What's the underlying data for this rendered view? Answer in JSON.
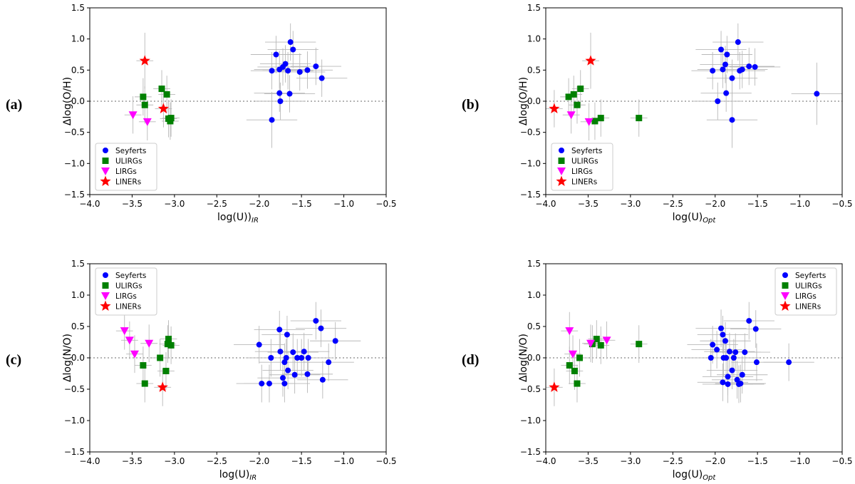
{
  "colors": {
    "seyferts": "#0000ff",
    "ulirgs": "#008000",
    "lirgs": "#ff00ff",
    "liners": "#ff0000",
    "errbar": "#b8b8b8",
    "zero": "#888888"
  },
  "legend_labels": [
    "Seyferts",
    "ULIRGs",
    "LIRGs",
    "LINERs"
  ],
  "chart_data": [
    {
      "type": "scatter",
      "panel_label": "(a)",
      "ylabel": "Δlog(O/H)",
      "xlabel": "log(U))",
      "xlabel_sub": "IR",
      "xlim": [
        -4.0,
        -0.5
      ],
      "ylim": [
        -1.5,
        1.5
      ],
      "xticks": [
        "−4.0",
        "−3.5",
        "−3.0",
        "−2.5",
        "−2.0",
        "−1.5",
        "−1.0",
        "−0.5"
      ],
      "yticks": [
        "1.5",
        "1.0",
        "0.5",
        "0.0",
        "−0.5",
        "−1.0",
        "−1.5"
      ],
      "legend_position": "lower-left",
      "series": [
        {
          "name": "Seyferts",
          "points": [
            [
              -1.85,
              0.49,
              0.25,
              0.3
            ],
            [
              -1.8,
              0.75,
              0.3,
              0.3
            ],
            [
              -1.76,
              0.51,
              0.3,
              0.3
            ],
            [
              -1.72,
              0.55,
              0.3,
              0.3
            ],
            [
              -1.69,
              0.6,
              0.3,
              0.3
            ],
            [
              -1.66,
              0.49,
              0.3,
              0.3
            ],
            [
              -1.63,
              0.95,
              0.3,
              0.3
            ],
            [
              -1.6,
              0.83,
              0.3,
              0.3
            ],
            [
              -1.52,
              0.47,
              0.3,
              0.3
            ],
            [
              -1.43,
              0.5,
              0.3,
              0.3
            ],
            [
              -1.33,
              0.56,
              0.3,
              0.3
            ],
            [
              -1.26,
              0.37,
              0.3,
              0.3
            ],
            [
              -1.76,
              0.13,
              0.3,
              0.3
            ],
            [
              -1.75,
              0.0,
              0.3,
              0.3
            ],
            [
              -1.64,
              0.12,
              0.3,
              0.3
            ],
            [
              -1.85,
              -0.3,
              0.3,
              0.45
            ]
          ]
        },
        {
          "name": "ULIRGs",
          "points": [
            [
              -3.37,
              0.07,
              0.1,
              0.3
            ],
            [
              -3.35,
              -0.06,
              0.1,
              0.3
            ],
            [
              -3.15,
              0.2,
              0.1,
              0.3
            ],
            [
              -3.09,
              0.11,
              0.1,
              0.3
            ],
            [
              -3.07,
              -0.28,
              0.1,
              0.3
            ],
            [
              -3.05,
              -0.32,
              0.1,
              0.3
            ],
            [
              -3.04,
              -0.27,
              0.1,
              0.3
            ]
          ]
        },
        {
          "name": "LIRGs",
          "points": [
            [
              -3.49,
              -0.22,
              0.1,
              0.3
            ],
            [
              -3.32,
              -0.33,
              0.1,
              0.3
            ]
          ]
        },
        {
          "name": "LINERs",
          "points": [
            [
              -3.35,
              0.65,
              0.1,
              0.45
            ],
            [
              -3.13,
              -0.12,
              0.1,
              0.3
            ]
          ]
        }
      ]
    },
    {
      "type": "scatter",
      "panel_label": "(b)",
      "ylabel": "Δlog(O/H)",
      "xlabel": "log(U)",
      "xlabel_sub": "Opt",
      "xlim": [
        -4.0,
        -0.5
      ],
      "ylim": [
        -1.5,
        1.5
      ],
      "xticks": [
        "−4.0",
        "−3.5",
        "−3.0",
        "−2.5",
        "−2.0",
        "−1.5",
        "−1.0",
        "−0.5"
      ],
      "yticks": [
        "1.5",
        "1.0",
        "0.5",
        "0.0",
        "−0.5",
        "−1.0",
        "−1.5"
      ],
      "legend_position": "lower-left",
      "series": [
        {
          "name": "Seyferts",
          "points": [
            [
              -2.03,
              0.49,
              0.25,
              0.3
            ],
            [
              -1.93,
              0.83,
              0.3,
              0.3
            ],
            [
              -1.91,
              0.51,
              0.3,
              0.3
            ],
            [
              -1.88,
              0.59,
              0.3,
              0.3
            ],
            [
              -1.86,
              0.75,
              0.3,
              0.3
            ],
            [
              -1.73,
              0.95,
              0.3,
              0.3
            ],
            [
              -1.71,
              0.49,
              0.3,
              0.3
            ],
            [
              -1.68,
              0.51,
              0.3,
              0.3
            ],
            [
              -1.6,
              0.56,
              0.3,
              0.3
            ],
            [
              -1.53,
              0.55,
              0.3,
              0.3
            ],
            [
              -1.8,
              0.37,
              0.3,
              0.3
            ],
            [
              -1.97,
              0.0,
              0.3,
              0.3
            ],
            [
              -1.87,
              0.13,
              0.3,
              0.3
            ],
            [
              -1.8,
              -0.3,
              0.3,
              0.45
            ],
            [
              -0.8,
              0.12,
              0.3,
              0.5
            ]
          ]
        },
        {
          "name": "ULIRGs",
          "points": [
            [
              -3.73,
              0.07,
              0.1,
              0.3
            ],
            [
              -3.67,
              0.11,
              0.1,
              0.3
            ],
            [
              -3.63,
              -0.06,
              0.1,
              0.3
            ],
            [
              -3.59,
              0.2,
              0.1,
              0.3
            ],
            [
              -3.42,
              -0.32,
              0.1,
              0.3
            ],
            [
              -3.35,
              -0.27,
              0.1,
              0.3
            ],
            [
              -2.9,
              -0.27,
              0.1,
              0.3
            ]
          ]
        },
        {
          "name": "LIRGs",
          "points": [
            [
              -3.7,
              -0.22,
              0.1,
              0.3
            ],
            [
              -3.49,
              -0.33,
              0.1,
              0.3
            ]
          ]
        },
        {
          "name": "LINERs",
          "points": [
            [
              -3.9,
              -0.12,
              0.1,
              0.3
            ],
            [
              -3.47,
              0.65,
              0.1,
              0.45
            ]
          ]
        }
      ]
    },
    {
      "type": "scatter",
      "panel_label": "(c)",
      "ylabel": "Δlog(N/O)",
      "xlabel": "log(U)",
      "xlabel_sub": "IR",
      "xlim": [
        -4.0,
        -0.5
      ],
      "ylim": [
        -1.5,
        1.5
      ],
      "xticks": [
        "−4.0",
        "−3.5",
        "−3.0",
        "−2.5",
        "−2.0",
        "−1.5",
        "−1.0",
        "−0.5"
      ],
      "yticks": [
        "1.5",
        "1.0",
        "0.5",
        "0.0",
        "−0.5",
        "−1.0",
        "−1.5"
      ],
      "legend_position": "upper-left",
      "series": [
        {
          "name": "Seyferts",
          "points": [
            [
              -2.0,
              0.21,
              0.3,
              0.3
            ],
            [
              -1.97,
              -0.41,
              0.3,
              0.3
            ],
            [
              -1.88,
              -0.41,
              0.3,
              0.3
            ],
            [
              -1.86,
              0.0,
              0.3,
              0.3
            ],
            [
              -1.76,
              0.45,
              0.3,
              0.3
            ],
            [
              -1.75,
              0.1,
              0.3,
              0.3
            ],
            [
              -1.7,
              -0.07,
              0.3,
              0.3
            ],
            [
              -1.68,
              0.0,
              0.3,
              0.3
            ],
            [
              -1.67,
              0.37,
              0.3,
              0.3
            ],
            [
              -1.66,
              -0.2,
              0.3,
              0.3
            ],
            [
              -1.6,
              0.09,
              0.3,
              0.3
            ],
            [
              -1.58,
              -0.27,
              0.3,
              0.3
            ],
            [
              -1.5,
              0.0,
              0.3,
              0.3
            ],
            [
              -1.47,
              0.1,
              0.3,
              0.3
            ],
            [
              -1.43,
              -0.26,
              0.3,
              0.3
            ],
            [
              -1.42,
              0.0,
              0.3,
              0.3
            ],
            [
              -1.33,
              0.59,
              0.3,
              0.3
            ],
            [
              -1.27,
              0.47,
              0.3,
              0.3
            ],
            [
              -1.25,
              -0.35,
              0.3,
              0.3
            ],
            [
              -1.18,
              -0.07,
              0.3,
              0.3
            ],
            [
              -1.1,
              0.27,
              0.3,
              0.3
            ],
            [
              -1.7,
              -0.41,
              0.3,
              0.3
            ],
            [
              -1.72,
              -0.32,
              0.3,
              0.3
            ],
            [
              -1.55,
              0.0,
              0.3,
              0.3
            ]
          ]
        },
        {
          "name": "ULIRGs",
          "points": [
            [
              -3.37,
              -0.12,
              0.1,
              0.3
            ],
            [
              -3.35,
              -0.41,
              0.1,
              0.3
            ],
            [
              -3.17,
              0.0,
              0.1,
              0.3
            ],
            [
              -3.1,
              -0.21,
              0.1,
              0.3
            ],
            [
              -3.08,
              0.22,
              0.1,
              0.3
            ],
            [
              -3.07,
              0.3,
              0.1,
              0.3
            ],
            [
              -3.04,
              0.2,
              0.1,
              0.3
            ]
          ]
        },
        {
          "name": "LIRGs",
          "points": [
            [
              -3.59,
              0.43,
              0.1,
              0.3
            ],
            [
              -3.53,
              0.28,
              0.1,
              0.3
            ],
            [
              -3.47,
              0.06,
              0.1,
              0.3
            ],
            [
              -3.3,
              0.23,
              0.1,
              0.3
            ]
          ]
        },
        {
          "name": "LINERs",
          "points": [
            [
              -3.14,
              -0.47,
              0.1,
              0.3
            ]
          ]
        }
      ]
    },
    {
      "type": "scatter",
      "panel_label": "(d)",
      "ylabel": "Δlog(N/O)",
      "xlabel": "log(U)",
      "xlabel_sub": "Opt",
      "xlim": [
        -4.0,
        -0.5
      ],
      "ylim": [
        -1.5,
        1.5
      ],
      "xticks": [
        "−4.0",
        "−3.5",
        "−3.0",
        "−2.5",
        "−2.0",
        "−1.5",
        "−1.0",
        "−0.5"
      ],
      "yticks": [
        "1.5",
        "1.0",
        "0.5",
        "0.0",
        "−0.5",
        "−1.0",
        "−1.5"
      ],
      "legend_position": "upper-right",
      "series": [
        {
          "name": "Seyferts",
          "points": [
            [
              -2.05,
              0.0,
              0.3,
              0.3
            ],
            [
              -2.03,
              0.21,
              0.3,
              0.3
            ],
            [
              -1.98,
              0.13,
              0.3,
              0.3
            ],
            [
              -1.93,
              0.47,
              0.3,
              0.3
            ],
            [
              -1.91,
              0.37,
              0.3,
              0.3
            ],
            [
              -1.9,
              0.0,
              0.3,
              0.3
            ],
            [
              -1.88,
              0.27,
              0.3,
              0.3
            ],
            [
              -1.87,
              0.0,
              0.3,
              0.3
            ],
            [
              -1.85,
              -0.3,
              0.3,
              0.3
            ],
            [
              -1.83,
              0.1,
              0.3,
              0.3
            ],
            [
              -1.8,
              -0.2,
              0.3,
              0.3
            ],
            [
              -1.78,
              0.0,
              0.3,
              0.3
            ],
            [
              -1.76,
              0.09,
              0.3,
              0.3
            ],
            [
              -1.74,
              -0.35,
              0.3,
              0.3
            ],
            [
              -1.7,
              -0.41,
              0.3,
              0.3
            ],
            [
              -1.68,
              -0.27,
              0.3,
              0.3
            ],
            [
              -1.65,
              0.09,
              0.3,
              0.3
            ],
            [
              -1.6,
              0.59,
              0.3,
              0.3
            ],
            [
              -1.52,
              0.46,
              0.3,
              0.3
            ],
            [
              -1.51,
              -0.07,
              0.3,
              0.3
            ],
            [
              -1.13,
              -0.07,
              0.3,
              0.3
            ],
            [
              -1.91,
              -0.39,
              0.3,
              0.3
            ],
            [
              -1.85,
              -0.42,
              0.3,
              0.3
            ],
            [
              -1.72,
              -0.42,
              0.3,
              0.3
            ]
          ]
        },
        {
          "name": "ULIRGs",
          "points": [
            [
              -3.72,
              -0.12,
              0.1,
              0.3
            ],
            [
              -3.66,
              -0.21,
              0.1,
              0.3
            ],
            [
              -3.63,
              -0.41,
              0.1,
              0.3
            ],
            [
              -3.6,
              0.0,
              0.1,
              0.3
            ],
            [
              -3.45,
              0.22,
              0.1,
              0.3
            ],
            [
              -3.4,
              0.3,
              0.1,
              0.3
            ],
            [
              -3.35,
              0.2,
              0.1,
              0.3
            ],
            [
              -2.9,
              0.22,
              0.1,
              0.3
            ]
          ]
        },
        {
          "name": "LIRGs",
          "points": [
            [
              -3.72,
              0.43,
              0.1,
              0.3
            ],
            [
              -3.68,
              0.06,
              0.1,
              0.3
            ],
            [
              -3.47,
              0.23,
              0.1,
              0.3
            ],
            [
              -3.28,
              0.28,
              0.1,
              0.3
            ]
          ]
        },
        {
          "name": "LINERs",
          "points": [
            [
              -3.9,
              -0.47,
              0.1,
              0.3
            ]
          ]
        }
      ]
    }
  ]
}
